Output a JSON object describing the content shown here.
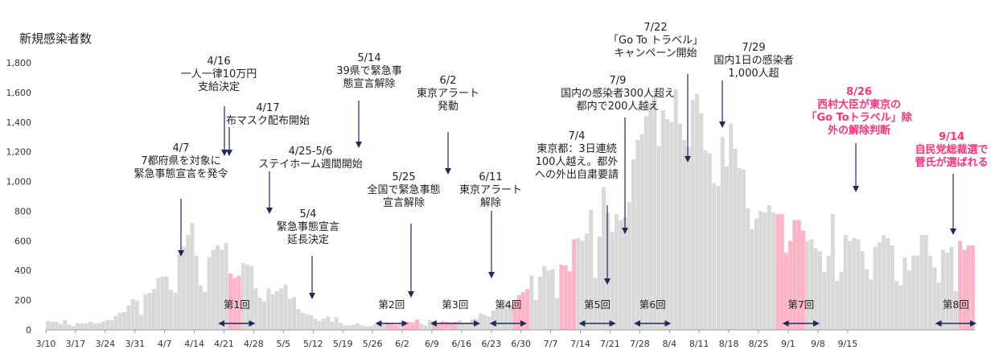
{
  "chart_data": {
    "type": "bar",
    "ylabel": "新規感染者数",
    "ylim": [
      0,
      1800
    ],
    "yticks": [
      "0",
      "200",
      "400",
      "600",
      "800",
      "1,000",
      "1,200",
      "1,400",
      "1,600",
      "1,800"
    ],
    "xtick_labels": [
      "3/10",
      "3/17",
      "3/24",
      "3/31",
      "4/7",
      "4/14",
      "4/21",
      "4/28",
      "5/5",
      "5/12",
      "5/19",
      "5/26",
      "6/2",
      "6/9",
      "6/16",
      "6/23",
      "6/30",
      "7/7",
      "7/14",
      "7/21",
      "7/28",
      "8/4",
      "8/11",
      "8/18",
      "8/25",
      "9/1",
      "9/8",
      "9/15"
    ],
    "start_date": "3/10",
    "grid": false,
    "colors": {
      "bar": "#d9d9d9",
      "highlight": "#ffb3c6",
      "annotation_red": "#ff3377",
      "arrow": "#1f2a5a"
    },
    "values": [
      60,
      55,
      55,
      40,
      65,
      35,
      25,
      45,
      45,
      45,
      55,
      45,
      45,
      55,
      65,
      65,
      95,
      115,
      120,
      165,
      205,
      195,
      100,
      240,
      250,
      275,
      350,
      360,
      360,
      270,
      250,
      510,
      560,
      640,
      720,
      500,
      300,
      255,
      490,
      540,
      570,
      540,
      585,
      380,
      350,
      365,
      450,
      440,
      430,
      280,
      215,
      190,
      280,
      240,
      260,
      280,
      305,
      210,
      220,
      140,
      115,
      105,
      100,
      75,
      60,
      75,
      90,
      55,
      85,
      45,
      30,
      30,
      35,
      45,
      30,
      25,
      25,
      35,
      45,
      35,
      50,
      45,
      35,
      45,
      60,
      55,
      50,
      70,
      40,
      30,
      65,
      60,
      40,
      60,
      55,
      50,
      55,
      65,
      45,
      40,
      70,
      75,
      110,
      100,
      90,
      130,
      145,
      185,
      195,
      170,
      200,
      235,
      255,
      275,
      365,
      200,
      360,
      430,
      400,
      410,
      215,
      440,
      435,
      395,
      610,
      620,
      600,
      650,
      810,
      350,
      630,
      960,
      790,
      660,
      780,
      740,
      760,
      860,
      1150,
      1280,
      1320,
      1440,
      1530,
      1580,
      1240,
      1480,
      1420,
      1400,
      1620,
      1390,
      1280,
      1230,
      1550,
      1590,
      1460,
      1210,
      1190,
      990,
      970,
      1300,
      1100,
      1390,
      1220,
      1090,
      1080,
      820,
      680,
      750,
      800,
      790,
      840,
      790,
      780,
      780,
      520,
      600,
      740,
      740,
      670,
      600,
      610,
      550,
      530,
      390,
      500,
      780,
      330,
      390,
      640,
      600,
      620,
      610,
      530,
      410,
      340,
      560,
      590,
      640,
      620,
      570,
      330,
      300,
      490,
      400,
      500,
      500,
      640,
      640,
      500,
      420,
      320,
      540,
      520,
      560,
      260,
      600,
      540,
      570,
      570
    ],
    "highlight_ranges": [
      [
        43,
        45
      ],
      [
        80,
        82
      ],
      [
        84,
        87
      ],
      [
        91,
        96
      ],
      [
        110,
        113
      ],
      [
        121,
        124
      ],
      [
        172,
        178
      ],
      [
        215,
        218
      ]
    ],
    "campaign_rounds": [
      {
        "label": "第1回",
        "start": 41,
        "end": 48
      },
      {
        "label": "第2回",
        "start": 78,
        "end": 84
      },
      {
        "label": "第3回",
        "start": 91,
        "end": 101
      },
      {
        "label": "第4回",
        "start": 105,
        "end": 112
      },
      {
        "label": "第5回",
        "start": 126,
        "end": 133
      },
      {
        "label": "第6回",
        "start": 139,
        "end": 146
      },
      {
        "label": "第7回",
        "start": 174,
        "end": 181
      },
      {
        "label": "第8回",
        "start": 210,
        "end": 218
      }
    ],
    "annotations": [
      {
        "lines": [
          "4/7",
          "7都府県を対象に",
          "緊急事態宣言を発令"
        ],
        "color": "black"
      },
      {
        "lines": [
          "4/16",
          "一人一律10万円",
          "支給決定"
        ],
        "color": "black"
      },
      {
        "lines": [
          "4/17",
          "布マスク配布開始"
        ],
        "color": "black"
      },
      {
        "lines": [
          "4/25-5/6",
          "ステイホーム週間開始"
        ],
        "color": "black"
      },
      {
        "lines": [
          "5/4",
          "緊急事態宣言",
          "延長決定"
        ],
        "color": "black"
      },
      {
        "lines": [
          "5/14",
          "39県で緊急事",
          "態宣言解除"
        ],
        "color": "black"
      },
      {
        "lines": [
          "5/25",
          "全国で緊急事態",
          "宣言解除"
        ],
        "color": "black"
      },
      {
        "lines": [
          "6/2",
          "東京アラート",
          "発動"
        ],
        "color": "black"
      },
      {
        "lines": [
          "6/11",
          "東京アラート",
          "解除"
        ],
        "color": "black"
      },
      {
        "lines": [
          "7/4",
          "東京都：3日連続",
          "100人越え。都外",
          "への外出自粛要請"
        ],
        "color": "black"
      },
      {
        "lines": [
          "7/9",
          "国内の感染者300人超え",
          "都内で200人越え"
        ],
        "color": "black"
      },
      {
        "lines": [
          "7/22",
          "「Go To トラベル」",
          "キャンペーン開始"
        ],
        "color": "black"
      },
      {
        "lines": [
          "7/29",
          "国内1日の感染者",
          "1,000人超"
        ],
        "color": "black"
      },
      {
        "lines": [
          "8/26",
          "西村大臣が東京の",
          "「Go Toトラベル」除",
          "外の解除判断"
        ],
        "color": "red"
      },
      {
        "lines": [
          "9/14",
          "自民党総裁選で",
          "菅氏が選ばれる"
        ],
        "color": "red"
      }
    ]
  }
}
